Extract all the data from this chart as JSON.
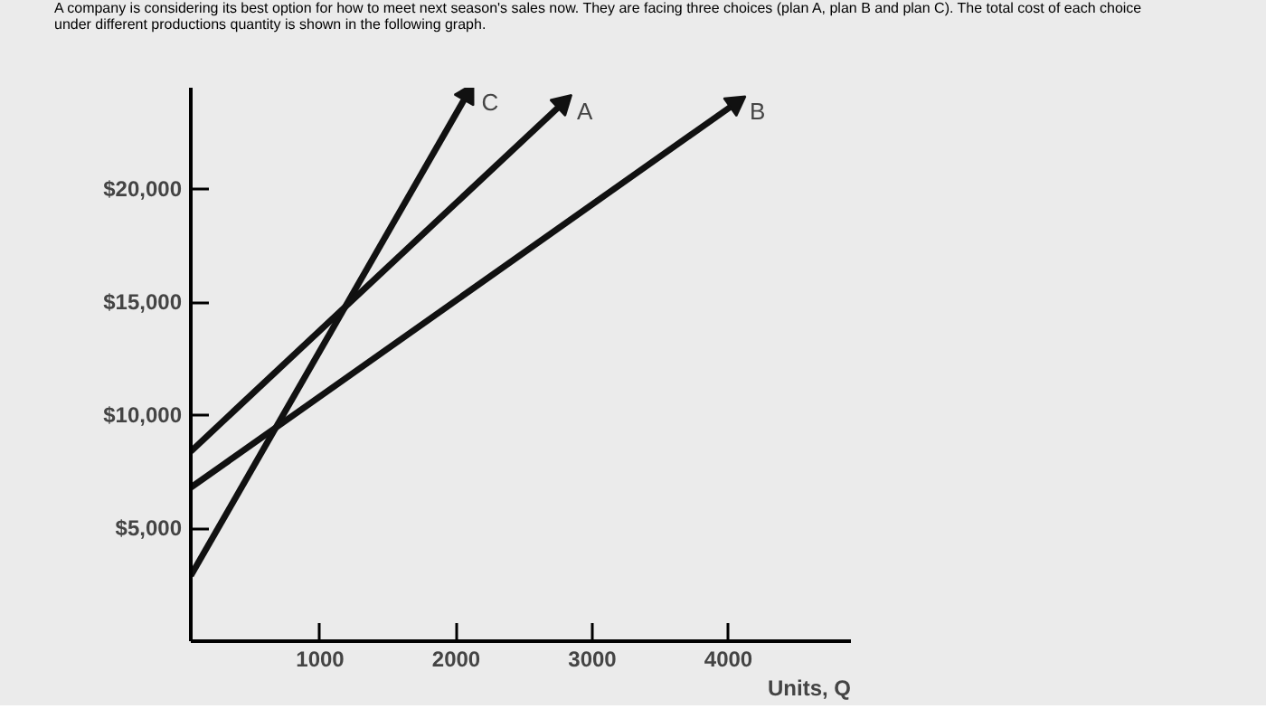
{
  "chart_data": {
    "type": "line",
    "title": "A company is considering its best option for how to meet next season's sales now. They are facing three choices (plan A, plan B and plan C). The total cost of each choice under different productions quantity is shown in the following graph.",
    "xlabel": "Units, Q",
    "series": [
      {
        "name": "C",
        "color": "#111111",
        "x": [
          50,
          2080
        ],
        "values": [
          2900,
          24200
        ]
      },
      {
        "name": "A",
        "color": "#111111",
        "x": [
          50,
          2780
        ],
        "values": [
          8400,
          23800
        ]
      },
      {
        "name": "B",
        "color": "#111111",
        "x": [
          50,
          4050
        ],
        "values": [
          6800,
          23800
        ]
      }
    ],
    "xlim": [
      50,
      4900
    ],
    "ylim": [
      0,
      24500
    ],
    "xticks": [
      1000,
      2000,
      3000,
      4000
    ],
    "yticks": [
      {
        "value": 5000,
        "label": "$5,000"
      },
      {
        "value": 10000,
        "label": "$10,000"
      },
      {
        "value": 15000,
        "label": "$15,000"
      },
      {
        "value": 20000,
        "label": "$20,000"
      }
    ],
    "grid": false,
    "legend": false
  }
}
